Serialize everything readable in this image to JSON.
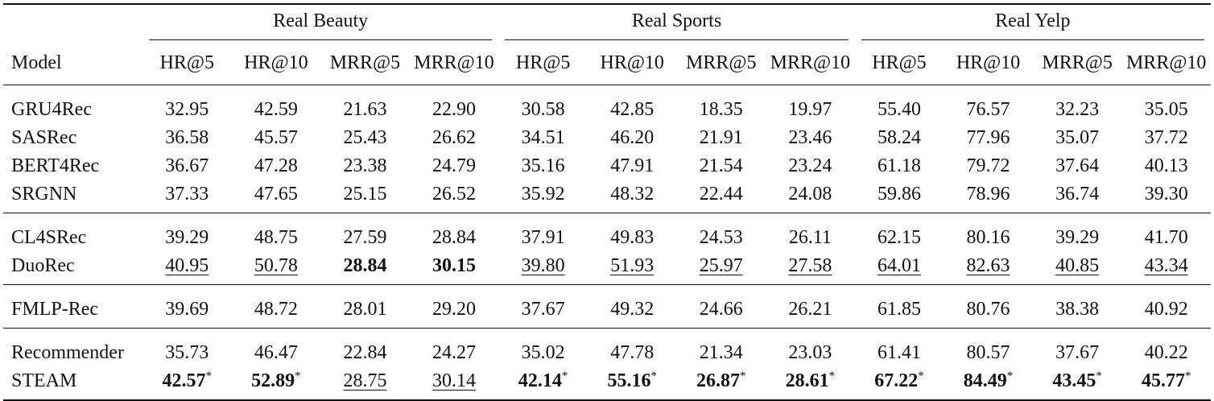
{
  "table": {
    "model_header": "Model",
    "groups": [
      "Real Beauty",
      "Real Sports",
      "Real Yelp"
    ],
    "metrics": [
      "HR@5",
      "HR@10",
      "MRR@5",
      "MRR@10"
    ],
    "blocks": [
      [
        {
          "model": "GRU4Rec",
          "values": [
            "32.95",
            "42.59",
            "21.63",
            "22.90",
            "30.58",
            "42.85",
            "18.35",
            "19.97",
            "55.40",
            "76.57",
            "32.23",
            "35.05"
          ]
        },
        {
          "model": "SASRec",
          "values": [
            "36.58",
            "45.57",
            "25.43",
            "26.62",
            "34.51",
            "46.20",
            "21.91",
            "23.46",
            "58.24",
            "77.96",
            "35.07",
            "37.72"
          ]
        },
        {
          "model": "BERT4Rec",
          "values": [
            "36.67",
            "47.28",
            "23.38",
            "24.79",
            "35.16",
            "47.91",
            "21.54",
            "23.24",
            "61.18",
            "79.72",
            "37.64",
            "40.13"
          ]
        },
        {
          "model": "SRGNN",
          "values": [
            "37.33",
            "47.65",
            "25.15",
            "26.52",
            "35.92",
            "48.32",
            "22.44",
            "24.08",
            "59.86",
            "78.96",
            "36.74",
            "39.30"
          ]
        }
      ],
      [
        {
          "model": "CL4SRec",
          "values": [
            "39.29",
            "48.75",
            "27.59",
            "28.84",
            "37.91",
            "49.83",
            "24.53",
            "26.11",
            "62.15",
            "80.16",
            "39.29",
            "41.70"
          ]
        },
        {
          "model": "DuoRec",
          "values": [
            "40.95",
            "50.78",
            "28.84",
            "30.15",
            "39.80",
            "51.93",
            "25.97",
            "27.58",
            "64.01",
            "82.63",
            "40.85",
            "43.34"
          ],
          "styles": [
            "u",
            "u",
            "b",
            "b",
            "u",
            "u",
            "u",
            "u",
            "u",
            "u",
            "u",
            "u"
          ]
        }
      ],
      [
        {
          "model": "FMLP-Rec",
          "values": [
            "39.69",
            "48.72",
            "28.01",
            "29.20",
            "37.67",
            "49.32",
            "24.66",
            "26.21",
            "61.85",
            "80.76",
            "38.38",
            "40.92"
          ]
        }
      ],
      [
        {
          "model": "Recommender",
          "values": [
            "35.73",
            "46.47",
            "22.84",
            "24.27",
            "35.02",
            "47.78",
            "21.34",
            "23.03",
            "61.41",
            "80.57",
            "37.67",
            "40.22"
          ]
        },
        {
          "model": "STEAM",
          "values": [
            "42.57",
            "52.89",
            "28.75",
            "30.14",
            "42.14",
            "55.16",
            "26.87",
            "28.61",
            "67.22",
            "84.49",
            "43.45",
            "45.77"
          ],
          "styles": [
            "b",
            "b",
            "u",
            "u",
            "b",
            "b",
            "b",
            "b",
            "b",
            "b",
            "b",
            "b"
          ],
          "marks": [
            "*",
            "*",
            "",
            "",
            "*",
            "*",
            "*",
            "*",
            "*",
            "*",
            "*",
            "*"
          ]
        }
      ]
    ]
  }
}
